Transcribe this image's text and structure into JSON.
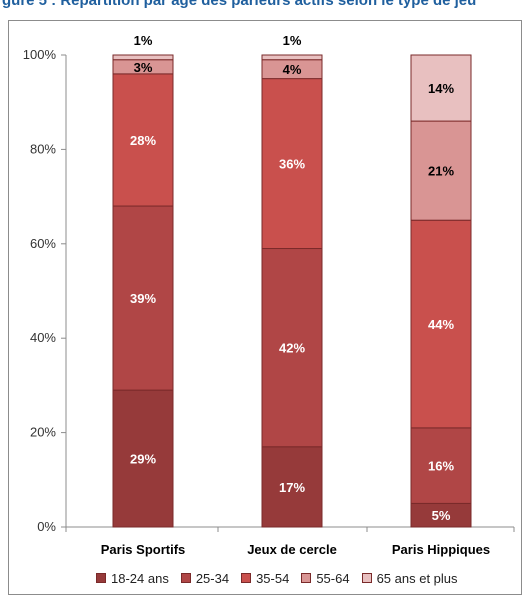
{
  "header": {
    "title": "gure 5 : Répartition par âge des parieurs actifs selon le type de jeu"
  },
  "chart_data": {
    "type": "bar",
    "stacked": true,
    "title": "",
    "xlabel": "",
    "ylabel": "",
    "ylim": [
      0,
      100
    ],
    "y_ticks": [
      "0%",
      "20%",
      "40%",
      "60%",
      "80%",
      "100%"
    ],
    "grid": false,
    "legend_position": "bottom",
    "categories": [
      "Paris Sportifs",
      "Jeux de cercle",
      "Paris Hippiques"
    ],
    "series": [
      {
        "name": "18-24 ans",
        "color": "#963a3a",
        "label_color": "#ffffff",
        "values": [
          29,
          17,
          5
        ],
        "labels": [
          "29%",
          "17%",
          "5%"
        ]
      },
      {
        "name": "25-34",
        "color": "#b04646",
        "label_color": "#ffffff",
        "values": [
          39,
          42,
          16
        ],
        "labels": [
          "39%",
          "42%",
          "16%"
        ]
      },
      {
        "name": "35-54",
        "color": "#c9504d",
        "label_color": "#ffffff",
        "values": [
          28,
          36,
          44
        ],
        "labels": [
          "28%",
          "36%",
          "44%"
        ]
      },
      {
        "name": "55-64",
        "color": "#d99594",
        "label_color": "#000000",
        "values": [
          3,
          4,
          21
        ],
        "labels": [
          "3%",
          "4%",
          "21%"
        ]
      },
      {
        "name": "65 ans et plus",
        "color": "#e8c0c0",
        "label_color": "#000000",
        "values": [
          1,
          1,
          14
        ],
        "labels": [
          "1%",
          "1%",
          "14%"
        ]
      }
    ]
  }
}
